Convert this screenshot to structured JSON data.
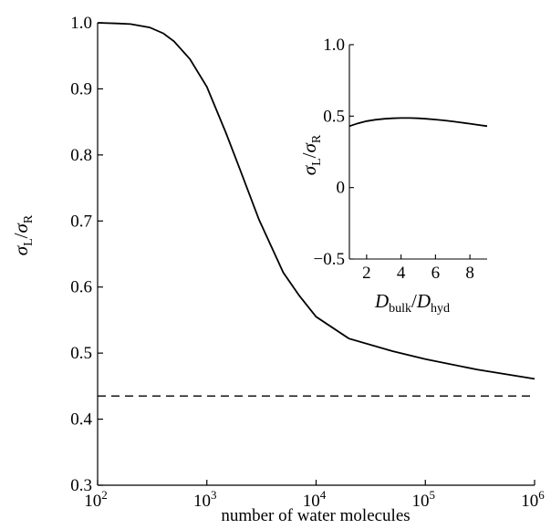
{
  "chart_data": [
    {
      "type": "line",
      "x_scale": "log",
      "xlim": [
        100,
        1000000
      ],
      "ylim": [
        0.3,
        1.0
      ],
      "grid": false,
      "xlabel": "number of water molecules",
      "ylabel": {
        "num": "σ",
        "num_sub": "L",
        "sep": "/",
        "den": "σ",
        "den_sub": "R"
      },
      "x_ticks": [
        {
          "value": 100,
          "base": "10",
          "exp": "2"
        },
        {
          "value": 1000,
          "base": "10",
          "exp": "3"
        },
        {
          "value": 10000,
          "base": "10",
          "exp": "4"
        },
        {
          "value": 100000,
          "base": "10",
          "exp": "5"
        },
        {
          "value": 1000000,
          "base": "10",
          "exp": "6"
        }
      ],
      "y_ticks": [
        "0.3",
        "0.4",
        "0.5",
        "0.6",
        "0.7",
        "0.8",
        "0.9",
        "1.0"
      ],
      "series": [
        {
          "style": "solid",
          "x": [
            100,
            150,
            200,
            300,
            400,
            500,
            700,
            1000,
            1500,
            2000,
            3000,
            5000,
            7000,
            10000,
            20000,
            50000,
            100000,
            300000,
            1000000
          ],
          "y": [
            1.0,
            0.999,
            0.998,
            0.993,
            0.984,
            0.972,
            0.945,
            0.903,
            0.833,
            0.779,
            0.702,
            0.622,
            0.587,
            0.555,
            0.522,
            0.503,
            0.491,
            0.475,
            0.461
          ]
        },
        {
          "style": "dashed",
          "x": [
            100,
            1000000
          ],
          "y": [
            0.435,
            0.435
          ]
        }
      ]
    },
    {
      "type": "line",
      "inset": true,
      "xlim": [
        1,
        9
      ],
      "ylim": [
        -0.5,
        1.0
      ],
      "grid": false,
      "xlabel": {
        "num": "D",
        "num_sub": "bulk",
        "sep": "/",
        "den": "D",
        "den_sub": "hyd"
      },
      "ylabel": {
        "num": "σ",
        "num_sub": "L",
        "sep": "/",
        "den": "σ",
        "den_sub": "R"
      },
      "x_ticks": [
        "2",
        "4",
        "6",
        "8"
      ],
      "y_ticks": [
        "−0.5",
        "0",
        "0.5",
        "1.0"
      ],
      "series": [
        {
          "style": "solid",
          "x": [
            1,
            1.5,
            2,
            2.5,
            3,
            3.5,
            4,
            4.5,
            5,
            5.5,
            6,
            6.5,
            7,
            7.5,
            8,
            8.5,
            9
          ],
          "y": [
            0.43,
            0.45,
            0.465,
            0.475,
            0.481,
            0.485,
            0.487,
            0.487,
            0.485,
            0.481,
            0.476,
            0.47,
            0.463,
            0.455,
            0.447,
            0.438,
            0.43
          ]
        }
      ]
    }
  ]
}
